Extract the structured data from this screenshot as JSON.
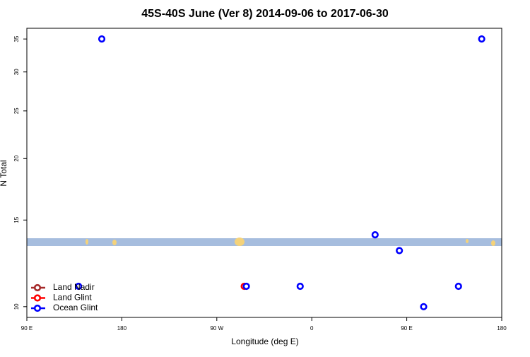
{
  "chart_data": {
    "type": "scatter",
    "title": "45S-40S June (Ver 8)   2014-09-06 to 2017-06-30",
    "x_label": "Longitude (deg E)",
    "y_label": "N Total",
    "xlim": [
      90,
      540
    ],
    "xticks": [
      {
        "value": 90,
        "label": "90 E"
      },
      180,
      {
        "value": 270,
        "label": "90 W"
      },
      {
        "value": 360,
        "label": "0"
      },
      {
        "value": 450,
        "label": "90 E"
      },
      {
        "value": 540,
        "label": "180"
      }
    ],
    "ylim": [
      9.51,
      36.8
    ],
    "yticks": [
      10,
      15,
      20,
      25,
      30,
      35
    ],
    "log_y": true,
    "legend": "bottom-left",
    "series": [
      {
        "name": "Land Nadir",
        "color": "#a52a2a",
        "x": [],
        "values": []
      },
      {
        "name": "Land Glint",
        "color": "#ff0000",
        "x": [
          296
        ],
        "values": [
          11
        ]
      },
      {
        "name": "Ocean Glint",
        "color": "#0000ff",
        "x": [
          161,
          521,
          420,
          443,
          139,
          298,
          349,
          499,
          466
        ],
        "values": [
          35,
          35,
          14,
          13,
          11,
          11,
          11,
          11,
          10
        ]
      }
    ]
  }
}
